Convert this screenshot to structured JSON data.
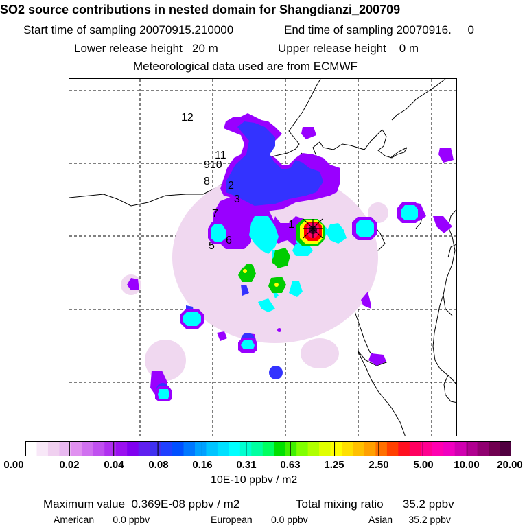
{
  "header": {
    "title": "SO2 source contributions in nested domain for Shangdianzi_200709",
    "start_sampling": "Start time of sampling 20070915.210000",
    "end_sampling": "End time of sampling 20070916.     0",
    "lower_release": "Lower release height   20 m",
    "upper_release": "Upper release height    0 m",
    "met_data": "Meteorological data used are from ECMWF"
  },
  "map": {
    "receptor_labels": [
      "1",
      "2",
      "3",
      "5",
      "6",
      "7",
      "8",
      "910",
      "11",
      "12"
    ],
    "receptor_marker": "asterisk-cross",
    "colors": {
      "low": "#f0d8f0",
      "purple": "#9900ff",
      "blue": "#3333ff",
      "cyan": "#00ffff",
      "green": "#00cc00",
      "yellow": "#ffff00",
      "red": "#ff0000",
      "maroon": "#550033"
    }
  },
  "colorbar": {
    "ticks": [
      "0.00",
      "0.02",
      "0.04",
      "0.08",
      "0.16",
      "0.31",
      "0.63",
      "1.25",
      "2.50",
      "5.00",
      "10.00",
      "20.00"
    ],
    "units": "10E-10 ppbv / m2",
    "colors": [
      "#ffffff",
      "#f8e8f8",
      "#f0d0f0",
      "#e8b8f0",
      "#e090f0",
      "#d070f0",
      "#c050f0",
      "#b030f0",
      "#9a10f0",
      "#8000f0",
      "#6020f0",
      "#4030f0",
      "#2040ff",
      "#0050ff",
      "#0078ff",
      "#00a0ff",
      "#00c4ff",
      "#00e0ff",
      "#00ffff",
      "#00ffd0",
      "#00ffa0",
      "#00ff60",
      "#00e000",
      "#40f000",
      "#80ff00",
      "#b0ff00",
      "#e0ff00",
      "#ffff00",
      "#ffe000",
      "#ffc000",
      "#ffa000",
      "#ff7000",
      "#ff4000",
      "#ff1020",
      "#ff0060",
      "#ff0090",
      "#ff00b0",
      "#f000c0",
      "#d000b0",
      "#b00090",
      "#900070",
      "#700050",
      "#500040"
    ]
  },
  "footer": {
    "max_value": "Maximum value  0.369E-08 ppbv / m2",
    "total_mixing": "Total mixing ratio      35.2 ppbv",
    "american": "American       0.0 ppbv",
    "european": "European       0.0 ppbv",
    "asian": "Asian      35.2 ppbv"
  }
}
